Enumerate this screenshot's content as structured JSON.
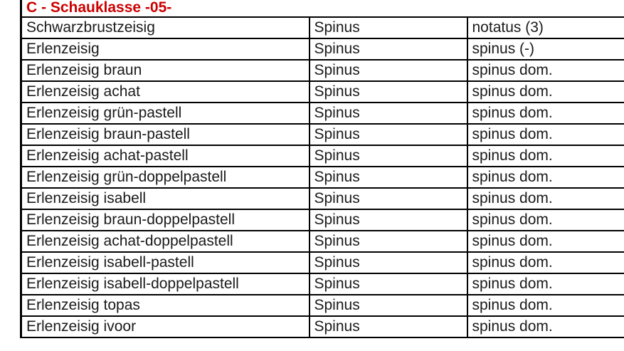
{
  "colors": {
    "header_text": "#cc0000",
    "border": "#000000",
    "body_text": "#1a1a1a",
    "background": "#ffffff"
  },
  "table": {
    "header": {
      "title": "C - Schauklasse -05-"
    },
    "columns": [
      "name",
      "genus",
      "species"
    ],
    "rows": [
      {
        "name": "Schwarzbrustzeisig",
        "genus": "Spinus",
        "species": "notatus (3)"
      },
      {
        "name": "Erlenzeisig",
        "genus": "Spinus",
        "species": "spinus (-)"
      },
      {
        "name": "Erlenzeisig braun",
        "genus": "Spinus",
        "species": "spinus dom."
      },
      {
        "name": "Erlenzeisig achat",
        "genus": "Spinus",
        "species": "spinus dom."
      },
      {
        "name": "Erlenzeisig grün-pastell",
        "genus": "Spinus",
        "species": "spinus dom."
      },
      {
        "name": "Erlenzeisig braun-pastell",
        "genus": "Spinus",
        "species": "spinus dom."
      },
      {
        "name": "Erlenzeisig achat-pastell",
        "genus": "Spinus",
        "species": "spinus dom."
      },
      {
        "name": "Erlenzeisig grün-doppelpastell",
        "genus": "Spinus",
        "species": "spinus dom."
      },
      {
        "name": "Erlenzeisig isabell",
        "genus": "Spinus",
        "species": "spinus dom."
      },
      {
        "name": "Erlenzeisig braun-doppelpastell",
        "genus": "Spinus",
        "species": "spinus dom."
      },
      {
        "name": "Erlenzeisig achat-doppelpastell",
        "genus": "Spinus",
        "species": "spinus dom."
      },
      {
        "name": "Erlenzeisig isabell-pastell",
        "genus": "Spinus",
        "species": "spinus dom."
      },
      {
        "name": "Erlenzeisig isabell-doppelpastell",
        "genus": "Spinus",
        "species": "spinus dom."
      },
      {
        "name": "Erlenzeisig topas",
        "genus": "Spinus",
        "species": "spinus dom."
      },
      {
        "name": "Erlenzeisig ivoor",
        "genus": "Spinus",
        "species": "spinus dom."
      }
    ]
  }
}
